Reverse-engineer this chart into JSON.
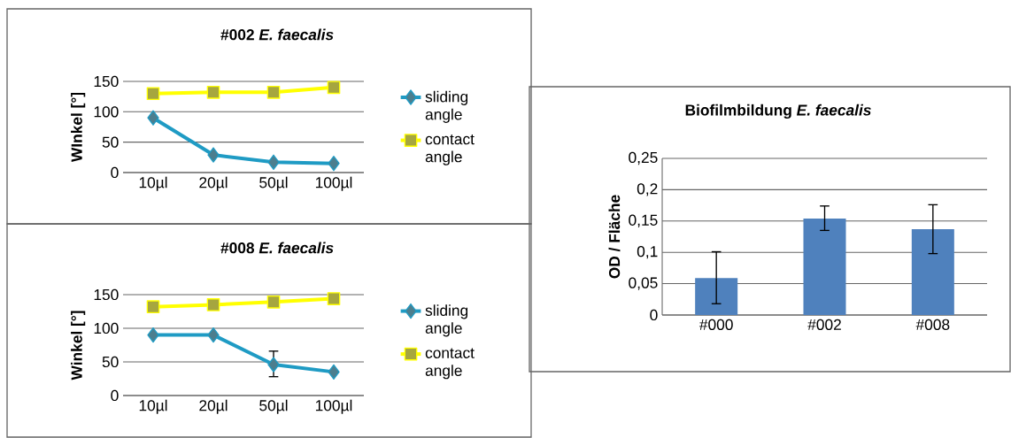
{
  "chart_data": [
    {
      "type": "line",
      "title": "#002 *E. faecalis*",
      "ylabel": "WInkel [°]",
      "categories": [
        "10µl",
        "20µl",
        "50µl",
        "100µl"
      ],
      "series": [
        {
          "name": "sliding angle",
          "color": "#1f9bc4",
          "marker": "diamond",
          "values": [
            90,
            29,
            17,
            15
          ]
        },
        {
          "name": "contact angle",
          "color": "#ffff00",
          "marker": "square",
          "values": [
            130,
            132,
            132,
            140
          ]
        }
      ],
      "ylim": [
        0,
        150
      ],
      "yticks": [
        0,
        50,
        100,
        150
      ],
      "grid": "y",
      "legend": "right"
    },
    {
      "type": "line",
      "title": "#008 *E. faecalis*",
      "ylabel": "Winkel [°]",
      "categories": [
        "10µl",
        "20µl",
        "50µl",
        "100µl"
      ],
      "series": [
        {
          "name": "sliding angle",
          "color": "#1f9bc4",
          "marker": "diamond",
          "values": [
            90,
            90,
            46,
            35
          ],
          "errors": [
            null,
            null,
            [
              28,
              66
            ],
            null
          ]
        },
        {
          "name": "contact angle",
          "color": "#ffff00",
          "marker": "square",
          "values": [
            132,
            135,
            139,
            144
          ]
        }
      ],
      "ylim": [
        0,
        150
      ],
      "yticks": [
        0,
        50,
        100,
        150
      ],
      "grid": "y",
      "legend": "right"
    },
    {
      "type": "bar",
      "title": "Biofilmbildung *E. faecalis*",
      "ylabel": "OD / Fläche",
      "categories": [
        "#000",
        "#002",
        "#008"
      ],
      "values": [
        0.059,
        0.154,
        0.137
      ],
      "color": "#4f81bd",
      "errors": [
        [
          0.018,
          0.101
        ],
        [
          0.135,
          0.174
        ],
        [
          0.098,
          0.176
        ]
      ],
      "ylim": [
        0,
        0.25
      ],
      "yticks": [
        0,
        {
          "value": 0.05,
          "label": "0,05"
        },
        {
          "value": 0.1,
          "label": "0,1"
        },
        {
          "value": 0.15,
          "label": "0,15"
        },
        {
          "value": 0.2,
          "label": "0,2"
        },
        {
          "value": 0.25,
          "label": "0,25"
        }
      ],
      "grid": "y",
      "legend": false
    }
  ]
}
